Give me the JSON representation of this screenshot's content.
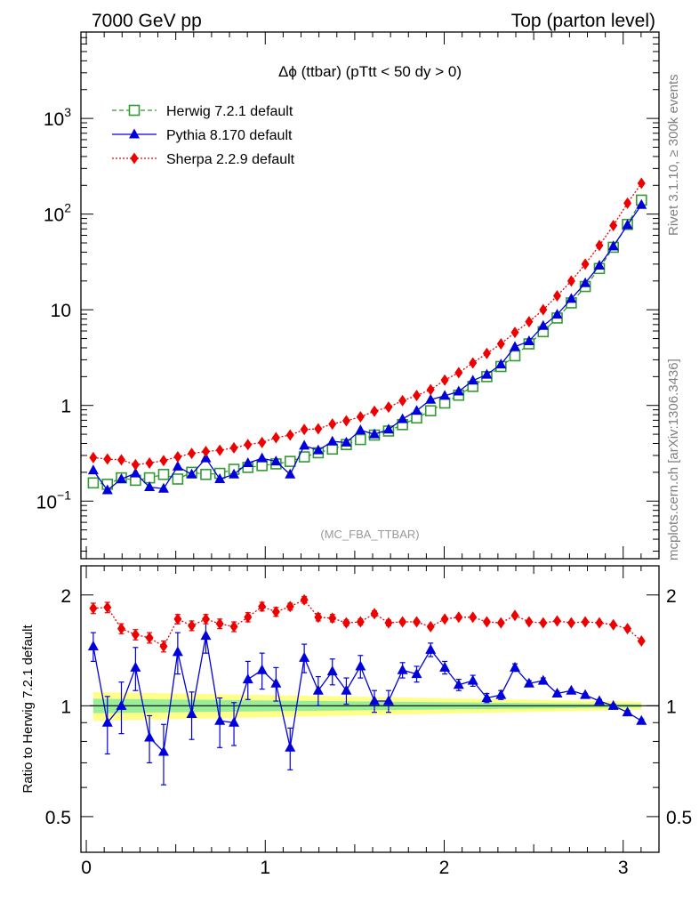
{
  "header": {
    "left_title": "7000 GeV pp",
    "right_title": "Top (parton level)"
  },
  "side_labels": {
    "rivet": "Rivet 3.1.10, ≥ 300k events",
    "mcplots": "mcplots.cern.ch [arXiv:1306.3436]"
  },
  "chart_data": [
    {
      "type": "line",
      "panel": "main",
      "title": "Δϕ (ttbar) (pTtt < 50 dy > 0)",
      "watermark": "(MC_FBA_TTBAR)",
      "xlabel": "",
      "ylabel": "",
      "xlim": [
        -0.03,
        3.2
      ],
      "ylim": [
        0.025,
        8000
      ],
      "yscale": "log",
      "yticks": [
        {
          "v": 0.1,
          "base": "10",
          "exp": "−1"
        },
        {
          "v": 1,
          "base": "1",
          "exp": ""
        },
        {
          "v": 10,
          "base": "10",
          "exp": ""
        },
        {
          "v": 100,
          "base": "10",
          "exp": "2"
        },
        {
          "v": 1000,
          "base": "10",
          "exp": "3"
        }
      ],
      "legend_position": "top-left",
      "x": [
        0.039,
        0.118,
        0.196,
        0.275,
        0.353,
        0.432,
        0.511,
        0.589,
        0.668,
        0.746,
        0.825,
        0.903,
        0.982,
        1.06,
        1.139,
        1.218,
        1.296,
        1.375,
        1.453,
        1.532,
        1.61,
        1.689,
        1.767,
        1.846,
        1.924,
        2.003,
        2.081,
        2.16,
        2.238,
        2.317,
        2.395,
        2.474,
        2.553,
        2.631,
        2.71,
        2.788,
        2.867,
        2.945,
        3.024,
        3.102
      ],
      "series": [
        {
          "name": "Herwig 7.2.1 default",
          "color": "#339933",
          "dash": "5,3",
          "marker": "open-square",
          "values": [
            0.155,
            0.15,
            0.175,
            0.165,
            0.175,
            0.19,
            0.17,
            0.2,
            0.19,
            0.195,
            0.215,
            0.225,
            0.235,
            0.245,
            0.26,
            0.29,
            0.32,
            0.35,
            0.39,
            0.44,
            0.49,
            0.54,
            0.63,
            0.74,
            0.88,
            1.06,
            1.28,
            1.58,
            2.0,
            2.55,
            3.3,
            4.4,
            5.9,
            8.2,
            11.8,
            17.5,
            27.0,
            45.0,
            78.0,
            140.0
          ]
        },
        {
          "name": "Pythia 8.170 default",
          "color": "#0000dd",
          "dash": "",
          "marker": "filled-triangle",
          "values": [
            0.21,
            0.13,
            0.17,
            0.195,
            0.14,
            0.135,
            0.23,
            0.19,
            0.28,
            0.17,
            0.19,
            0.25,
            0.28,
            0.26,
            0.19,
            0.38,
            0.34,
            0.42,
            0.41,
            0.55,
            0.5,
            0.56,
            0.72,
            0.88,
            1.15,
            1.26,
            1.4,
            1.82,
            2.1,
            2.68,
            4.1,
            4.7,
            6.8,
            8.9,
            13.0,
            19.0,
            29.0,
            46.0,
            77.0,
            125.0
          ]
        },
        {
          "name": "Sherpa 2.2.9 default",
          "color": "#ee0000",
          "dash": "2,2",
          "marker": "filled-diamond",
          "values": [
            0.285,
            0.275,
            0.27,
            0.24,
            0.25,
            0.265,
            0.29,
            0.315,
            0.33,
            0.34,
            0.36,
            0.39,
            0.41,
            0.46,
            0.49,
            0.56,
            0.57,
            0.64,
            0.69,
            0.76,
            0.87,
            0.96,
            1.12,
            1.27,
            1.46,
            1.84,
            2.2,
            2.78,
            3.5,
            4.4,
            5.8,
            7.5,
            10.0,
            14.0,
            20.0,
            30.0,
            47.0,
            76.0,
            130.0,
            210.0
          ]
        }
      ]
    },
    {
      "type": "line",
      "panel": "ratio",
      "ylabel": "Ratio to Herwig 7.2.1 default",
      "xlim": [
        -0.03,
        3.2
      ],
      "ylim": [
        0.4,
        2.4
      ],
      "yscale": "log",
      "xticks": [
        0,
        1,
        2,
        3
      ],
      "yticks": [
        0.5,
        1,
        2
      ],
      "ytick_labels": [
        "0.5",
        "1",
        "2"
      ],
      "reference": 1,
      "band_inner_color": "#99ee99",
      "band_outer_color": "#ffff88",
      "series": [
        {
          "name": "Pythia 8.170 default",
          "color": "#0000dd",
          "values": [
            1.45,
            0.9,
            1.0,
            1.27,
            0.82,
            0.75,
            1.4,
            0.95,
            1.55,
            0.91,
            0.9,
            1.18,
            1.25,
            1.15,
            0.77,
            1.35,
            1.1,
            1.24,
            1.1,
            1.28,
            1.03,
            1.03,
            1.25,
            1.22,
            1.42,
            1.27,
            1.14,
            1.17,
            1.05,
            1.07,
            1.27,
            1.15,
            1.17,
            1.08,
            1.1,
            1.07,
            1.03,
            1.0,
            0.96,
            0.91
          ],
          "errors": [
            0.13,
            0.16,
            0.16,
            0.17,
            0.12,
            0.14,
            0.18,
            0.14,
            0.16,
            0.14,
            0.12,
            0.14,
            0.14,
            0.12,
            0.1,
            0.12,
            0.1,
            0.1,
            0.09,
            0.09,
            0.07,
            0.07,
            0.06,
            0.06,
            0.06,
            0.05,
            0.04,
            0.04,
            0.03,
            0.03,
            0.03,
            0.02,
            0.02,
            0.015,
            0.01,
            0.01,
            0.01,
            0.01,
            0.01,
            0.01
          ]
        },
        {
          "name": "Sherpa 2.2.9 default",
          "color": "#ee0000",
          "values": [
            1.84,
            1.85,
            1.62,
            1.56,
            1.53,
            1.45,
            1.72,
            1.65,
            1.72,
            1.67,
            1.64,
            1.74,
            1.86,
            1.8,
            1.86,
            1.94,
            1.74,
            1.73,
            1.68,
            1.69,
            1.78,
            1.68,
            1.69,
            1.69,
            1.64,
            1.72,
            1.74,
            1.74,
            1.69,
            1.68,
            1.76,
            1.69,
            1.68,
            1.7,
            1.68,
            1.69,
            1.68,
            1.66,
            1.62,
            1.5
          ],
          "errors": [
            0.06,
            0.06,
            0.05,
            0.05,
            0.05,
            0.05,
            0.05,
            0.05,
            0.05,
            0.05,
            0.05,
            0.05,
            0.05,
            0.05,
            0.04,
            0.04,
            0.04,
            0.04,
            0.03,
            0.03,
            0.03,
            0.03,
            0.02,
            0.02,
            0.02,
            0.02,
            0.02,
            0.02,
            0.02,
            0.015,
            0.015,
            0.015,
            0.01,
            0.01,
            0.01,
            0.01,
            0.01,
            0.01,
            0.01,
            0.01
          ]
        }
      ]
    }
  ]
}
